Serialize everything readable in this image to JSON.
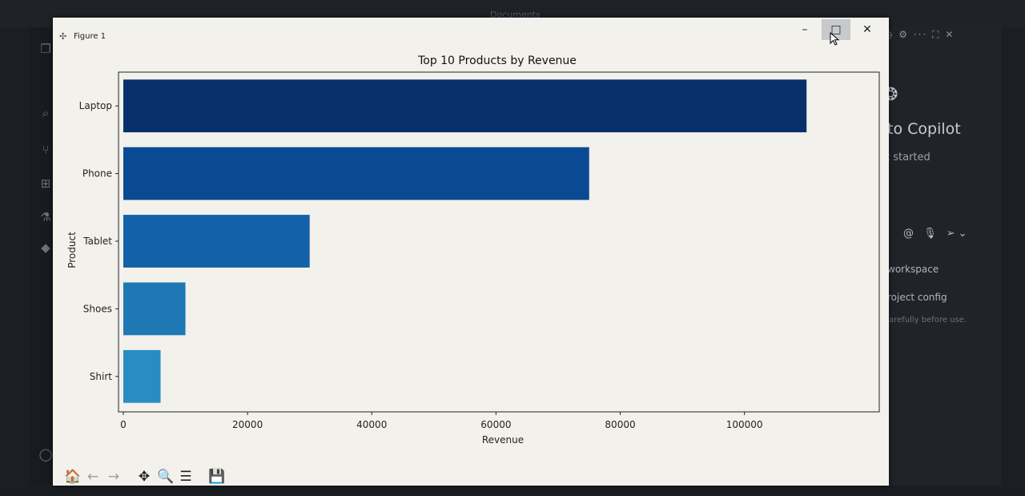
{
  "ide": {
    "title": "Documents",
    "panel": {
      "heading": "to Copilot",
      "subheading": "t started",
      "chat_line_1": "workspace",
      "chat_line_2": "roject config",
      "chat_line_3": "arefully before use."
    }
  },
  "window": {
    "title": "Figure 1",
    "minimize_glyph": "–",
    "maximize_glyph": "□",
    "close_glyph": "✕"
  },
  "toolbar": {
    "buttons": [
      {
        "name": "home-button",
        "glyph": "🏠",
        "faded": false
      },
      {
        "name": "back-button",
        "glyph": "←",
        "faded": true
      },
      {
        "name": "forward-button",
        "glyph": "→",
        "faded": true
      },
      {
        "name": "pan-button",
        "glyph": "✥",
        "faded": false
      },
      {
        "name": "zoom-button",
        "glyph": "🔍",
        "faded": false
      },
      {
        "name": "configure-subplots-button",
        "glyph": "☰",
        "faded": false
      },
      {
        "name": "save-figure-button",
        "glyph": "💾",
        "faded": false
      }
    ]
  },
  "chart_data": {
    "type": "bar",
    "orientation": "horizontal",
    "title": "Top 10 Products by Revenue",
    "xlabel": "Revenue",
    "ylabel": "Product",
    "categories": [
      "Laptop",
      "Phone",
      "Tablet",
      "Shoes",
      "Shirt"
    ],
    "values": [
      110000,
      75000,
      30000,
      10000,
      6000
    ],
    "xlim": [
      0,
      115000
    ],
    "xticks": [
      0,
      20000,
      40000,
      60000,
      80000,
      100000
    ],
    "grid": false,
    "colors": [
      "#08306b",
      "#0a4a93",
      "#1361a8",
      "#1f78b4",
      "#2b8cc4"
    ]
  }
}
